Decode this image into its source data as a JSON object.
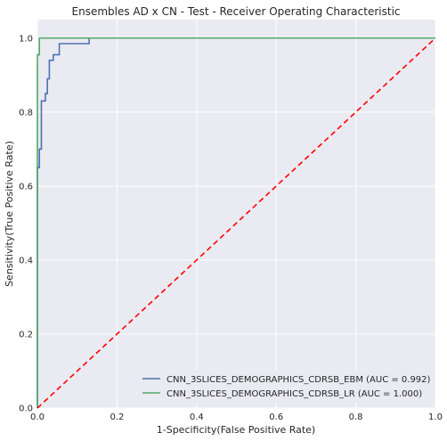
{
  "chart_data": {
    "type": "line",
    "title": "Ensembles AD x CN - Test - Receiver Operating Characteristic",
    "xlabel": "1-Specificity(False Positive Rate)",
    "ylabel": "Sensitivity(True Positive Rate)",
    "xlim": [
      0,
      1
    ],
    "ylim": [
      0,
      1.05
    ],
    "xticks": [
      "0.0",
      "0.2",
      "0.4",
      "0.6",
      "0.8",
      "1.0"
    ],
    "yticks": [
      "0.0",
      "0.2",
      "0.4",
      "0.6",
      "0.8",
      "1.0"
    ],
    "grid": true,
    "legend_position": "lower-right",
    "colors": {
      "background": "#eaeaf2",
      "grid": "#ffffff",
      "ebm": "#4c72b0",
      "lr": "#55a868",
      "chance": "#ff0000"
    },
    "series": [
      {
        "name": "CNN_3SLICES_DEMOGRAPHICS_CDRSB_EBM (AUC = 0.992)",
        "color": "#4c72b0",
        "x": [
          0,
          0,
          0.005,
          0.005,
          0.01,
          0.01,
          0.02,
          0.02,
          0.025,
          0.025,
          0.03,
          0.03,
          0.04,
          0.04,
          0.055,
          0.055,
          0.13,
          0.13,
          1
        ],
        "y": [
          0,
          0.65,
          0.65,
          0.7,
          0.7,
          0.83,
          0.83,
          0.85,
          0.85,
          0.89,
          0.89,
          0.94,
          0.94,
          0.955,
          0.955,
          0.985,
          0.985,
          1,
          1
        ]
      },
      {
        "name": "CNN_3SLICES_DEMOGRAPHICS_CDRSB_LR (AUC = 1.000)",
        "color": "#55a868",
        "x": [
          0,
          0,
          0.005,
          0.005,
          1
        ],
        "y": [
          0,
          0.955,
          0.955,
          1,
          1
        ]
      },
      {
        "color": "#ff0000",
        "dashed": true,
        "x": [
          0,
          1
        ],
        "y": [
          0,
          1
        ]
      }
    ]
  }
}
